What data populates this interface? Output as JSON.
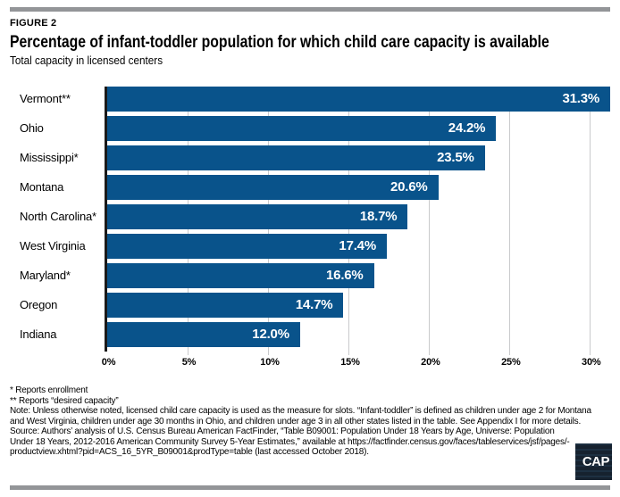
{
  "header": {
    "figure_label": "FIGURE 2",
    "title": "Percentage of infant-toddler population for which child care capacity is available",
    "subtitle": "Total capacity in licensed centers"
  },
  "chart_data": {
    "type": "bar",
    "orientation": "horizontal",
    "title": "Percentage of infant-toddler population for which child care capacity is available",
    "subtitle": "Total capacity in licensed centers",
    "categories": [
      "Vermont**",
      "Ohio",
      "Mississippi*",
      "Montana",
      "North Carolina*",
      "West Virginia",
      "Maryland*",
      "Oregon",
      "Indiana"
    ],
    "values": [
      31.3,
      24.2,
      23.5,
      20.6,
      18.7,
      17.4,
      16.6,
      14.7,
      12.0
    ],
    "value_labels": [
      "31.3%",
      "24.2%",
      "23.5%",
      "20.6%",
      "18.7%",
      "17.4%",
      "16.6%",
      "14.7%",
      "12.0%"
    ],
    "x_ticks": [
      "0%",
      "5%",
      "10%",
      "15%",
      "20%",
      "25%",
      "30%"
    ],
    "x_tick_values": [
      0,
      5,
      10,
      15,
      20,
      25,
      30
    ],
    "xlim": [
      0,
      31.3
    ],
    "xlabel": "",
    "ylabel": "",
    "grid": true,
    "legend": "none",
    "bar_color": "#09538B",
    "value_label_color": "#FFFFFF",
    "gridline_color": "#C9CACC",
    "axis_color": "#1A1A1A"
  },
  "footnotes": {
    "line1": "* Reports enrollment",
    "line2": "** Reports “desired capacity”",
    "note": "Note: Unless otherwise noted, licensed child care capacity is used as the measure for slots. “Infant-toddler” is defined as children under age 2 for Montana and West Virginia, children under age 30 months in Ohio, and children under age 3 in all other states listed in the table. See Appendix I for more details.",
    "source": "Source: Authors’ analysis of U.S. Census Bureau American FactFinder, “Table B09001: Population Under 18 Years by Age, Universe: Population Under 18 Years, 2012-2016 American Community Survey 5-Year Estimates,” available at https://factfinder.census.gov/faces/tableservices/jsf/pages/-productview.xhtml?pid=ACS_16_5YR_B09001&prodType=table (last accessed October 2018)."
  },
  "logo": {
    "text": "CAP",
    "bg_color": "#16222F"
  }
}
